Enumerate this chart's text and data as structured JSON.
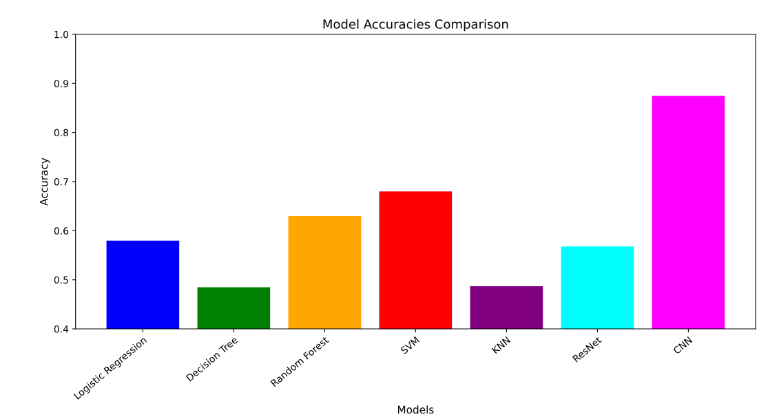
{
  "chart_data": {
    "type": "bar",
    "title": "Model Accuracies Comparison",
    "xlabel": "Models",
    "ylabel": "Accuracy",
    "categories": [
      "Logistic Regression",
      "Decision Tree",
      "Random Forest",
      "SVM",
      "KNN",
      "ResNet",
      "CNN"
    ],
    "values": [
      0.58,
      0.485,
      0.63,
      0.68,
      0.487,
      0.568,
      0.875
    ],
    "colors": [
      "#0000ff",
      "#008000",
      "#ffa500",
      "#ff0000",
      "#800080",
      "#00ffff",
      "#ff00ff"
    ],
    "ylim": [
      0.4,
      1.0
    ],
    "yticks": [
      0.4,
      0.5,
      0.6,
      0.7,
      0.8,
      0.9,
      {
        "value": 1,
        "label": "1.0"
      }
    ],
    "grid": false,
    "legend": false
  }
}
